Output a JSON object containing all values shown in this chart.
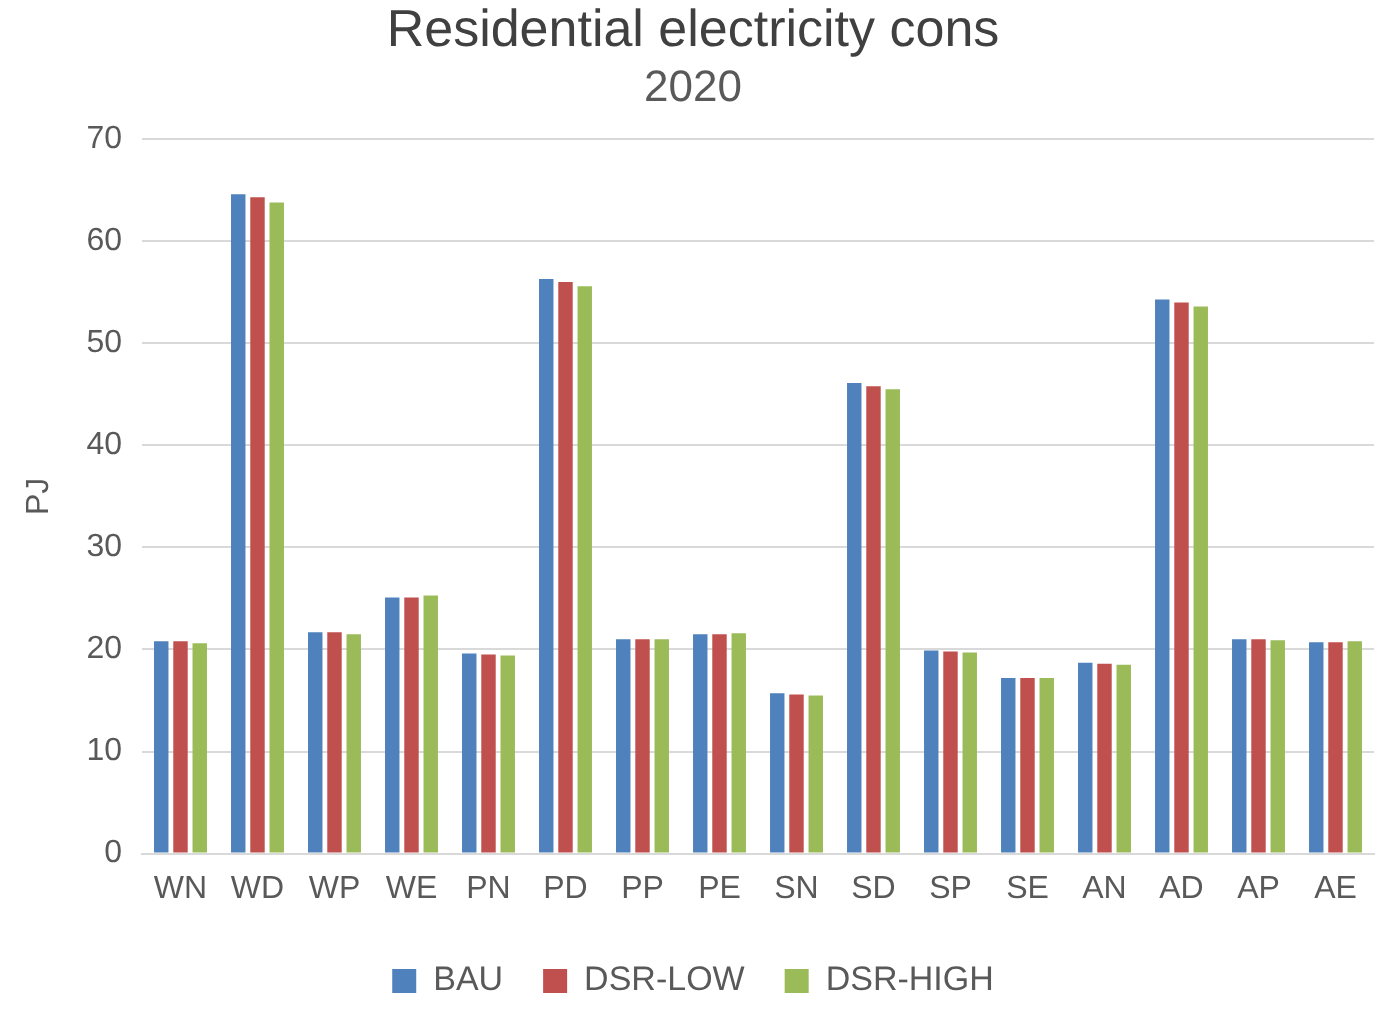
{
  "chart_data": {
    "type": "bar",
    "title": "Residential electricity cons",
    "subtitle": "2020",
    "ylabel": "PJ",
    "categories": [
      "WN",
      "WD",
      "WP",
      "WE",
      "PN",
      "PD",
      "PP",
      "PE",
      "SN",
      "SD",
      "SP",
      "SE",
      "AN",
      "AD",
      "AP",
      "AE"
    ],
    "series": [
      {
        "name": "BAU",
        "color": "#4f81bd",
        "values": [
          20.8,
          64.6,
          21.7,
          25.1,
          19.6,
          56.3,
          21.0,
          21.5,
          15.7,
          46.1,
          19.9,
          17.2,
          18.7,
          54.3,
          21.0,
          20.7
        ]
      },
      {
        "name": "DSR-LOW",
        "color": "#c0504d",
        "values": [
          20.8,
          64.3,
          21.7,
          25.1,
          19.5,
          56.0,
          21.0,
          21.5,
          15.6,
          45.8,
          19.8,
          17.2,
          18.6,
          54.0,
          21.0,
          20.7
        ]
      },
      {
        "name": "DSR-HIGH",
        "color": "#9bbb59",
        "values": [
          20.6,
          63.8,
          21.5,
          25.3,
          19.4,
          55.6,
          21.0,
          21.6,
          15.5,
          45.5,
          19.7,
          17.2,
          18.5,
          53.6,
          20.9,
          20.8
        ]
      }
    ],
    "ylim": [
      0,
      70
    ],
    "yticks": [
      0,
      10,
      20,
      30,
      40,
      50,
      60,
      70
    ],
    "grid": "y",
    "legend": "bottom"
  }
}
